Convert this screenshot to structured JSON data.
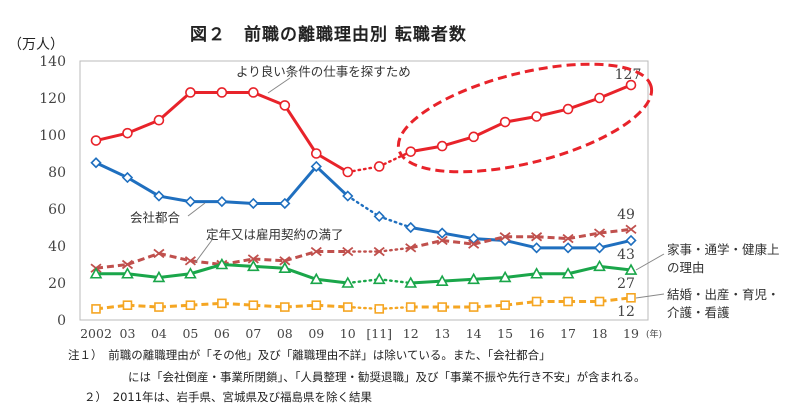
{
  "title": "図２　前職の離職理由別 転職者数",
  "unit": "（万人）",
  "notes": [
    "注１）　前職の離職理由が「その他」及び「離職理由不詳」は除いている。また、「会社都合」",
    "には「会社倒産・事業所閉鎖」、「人員整理・勧奨退職」及び「事業不振や先行き不安」が含まれる。",
    "２）　2011年は、岩手県、宮城県及び福島県を除く結果"
  ],
  "chart_data": {
    "type": "line",
    "title": "図２　前職の離職理由別 転職者数",
    "ylabel": "（万人）",
    "xlabel": "(年)",
    "ylim": [
      0,
      140
    ],
    "yticks": [
      0,
      20,
      40,
      60,
      80,
      100,
      120,
      140
    ],
    "x": [
      2002,
      2003,
      2004,
      2005,
      2006,
      2007,
      2008,
      2009,
      2010,
      2011,
      2012,
      2013,
      2014,
      2015,
      2016,
      2017,
      2018,
      2019
    ],
    "xtick_labels": [
      "2002",
      "03",
      "04",
      "05",
      "06",
      "07",
      "08",
      "09",
      "10",
      "[11]",
      "12",
      "13",
      "14",
      "15",
      "16",
      "17",
      "18",
      "19"
    ],
    "x_unit_label": "(年)",
    "dotted_segment_around": 2011,
    "grid": false,
    "series": [
      {
        "name": "より良い条件の仕事を探すため",
        "color": "#e8232a",
        "marker": "circle",
        "style": "solid",
        "values": [
          97,
          101,
          108,
          123,
          123,
          123,
          116,
          90,
          80,
          83,
          91,
          94,
          99,
          107,
          110,
          114,
          120,
          127
        ],
        "end_label": "127"
      },
      {
        "name": "会社都合",
        "color": "#1f6fbf",
        "marker": "diamond",
        "style": "solid",
        "values": [
          85,
          77,
          67,
          64,
          64,
          63,
          63,
          83,
          67,
          56,
          50,
          47,
          44,
          43,
          39,
          39,
          39,
          43
        ],
        "end_label": "43"
      },
      {
        "name": "定年又は雇用契約の満了",
        "color": "#c0504d",
        "marker": "x",
        "style": "dashed",
        "values": [
          28,
          30,
          36,
          32,
          30,
          33,
          32,
          37,
          37,
          37,
          39,
          43,
          41,
          45,
          45,
          44,
          47,
          49
        ],
        "end_label": "49"
      },
      {
        "name": "家事・通学・健康上の理由",
        "color": "#1aa64a",
        "marker": "triangle",
        "style": "solid",
        "values": [
          25,
          25,
          23,
          25,
          30,
          29,
          28,
          22,
          20,
          22,
          20,
          21,
          22,
          23,
          25,
          25,
          29,
          27
        ],
        "end_label": "27",
        "label_lines": [
          "家事・通学・健康上",
          "の理由"
        ]
      },
      {
        "name": "結婚・出産・育児・介護・看護",
        "color": "#f5a623",
        "marker": "square",
        "style": "dashed",
        "values": [
          6,
          8,
          7,
          8,
          9,
          8,
          7,
          8,
          7,
          6,
          7,
          7,
          7,
          8,
          10,
          10,
          10,
          12
        ],
        "end_label": "12",
        "label_lines": [
          "結婚・出産・育児・",
          "介護・看護"
        ]
      }
    ],
    "annotations": [
      {
        "type": "dashed-ellipse",
        "color": "#e8232a",
        "target": "より良い条件の仕事を探すため 2012-2019"
      }
    ]
  }
}
